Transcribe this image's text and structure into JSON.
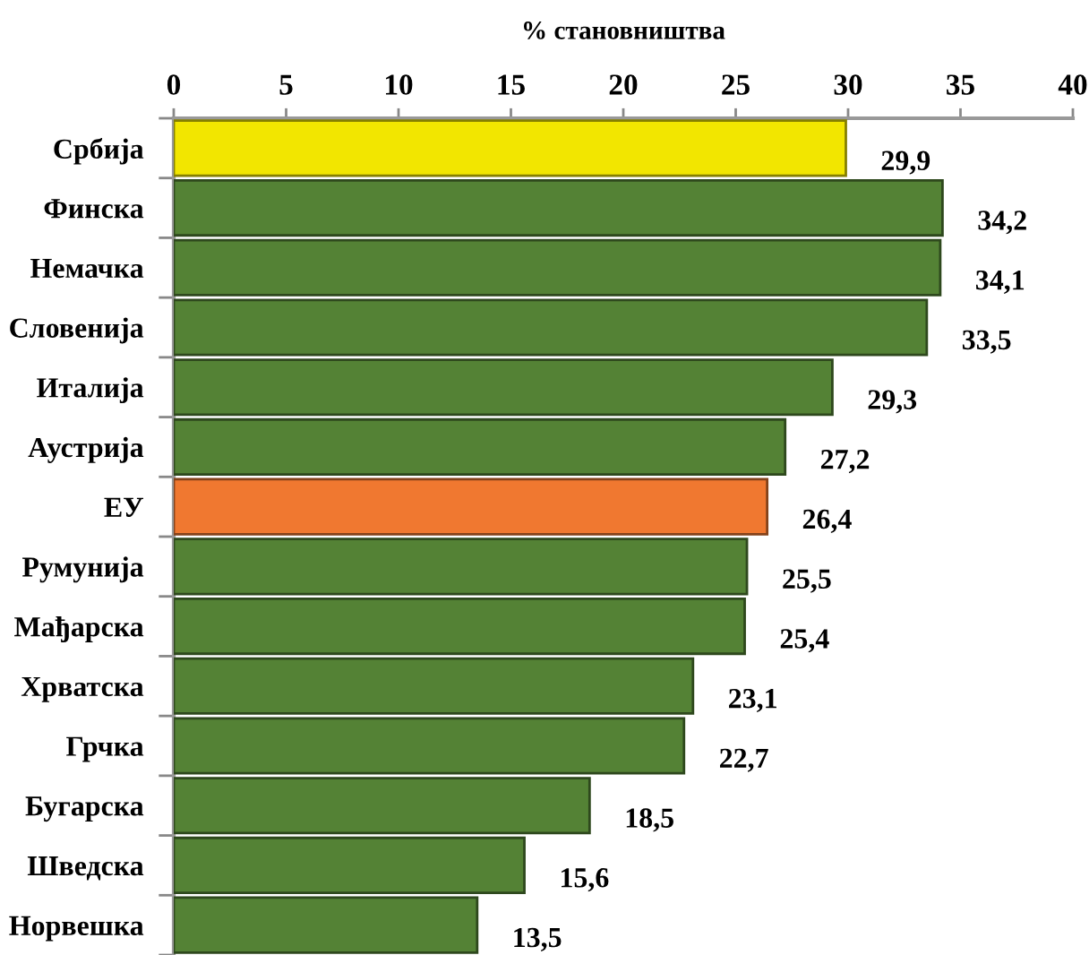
{
  "chart_data": {
    "type": "bar",
    "orientation": "horizontal",
    "xlabel": "% становништва",
    "categories": [
      "Србија",
      "Финска",
      "Немачка",
      "Словенија",
      "Италија",
      "Аустрија",
      "ЕУ",
      "Румунија",
      "Мађарска",
      "Хрватска",
      "Грчка",
      "Бугарска",
      "Шведска",
      "Норвешка"
    ],
    "values": [
      29.9,
      34.2,
      34.1,
      33.5,
      29.3,
      27.2,
      26.4,
      25.5,
      25.4,
      23.1,
      22.7,
      18.5,
      15.6,
      13.5
    ],
    "colors": [
      "#f2e600",
      "#548235",
      "#548235",
      "#548235",
      "#548235",
      "#548235",
      "#f07830",
      "#548235",
      "#548235",
      "#548235",
      "#548235",
      "#548235",
      "#548235",
      "#548235"
    ],
    "value_labels": [
      "29,9",
      "34,2",
      "34,1",
      "33,5",
      "29,3",
      "27,2",
      "26,4",
      "25,5",
      "25,4",
      "23,1",
      "22,7",
      "18,5",
      "15,6",
      "13,5"
    ],
    "xlim": [
      0,
      40
    ],
    "xticks": [
      0,
      5,
      10,
      15,
      20,
      25,
      30,
      35,
      40
    ],
    "grid": false
  }
}
